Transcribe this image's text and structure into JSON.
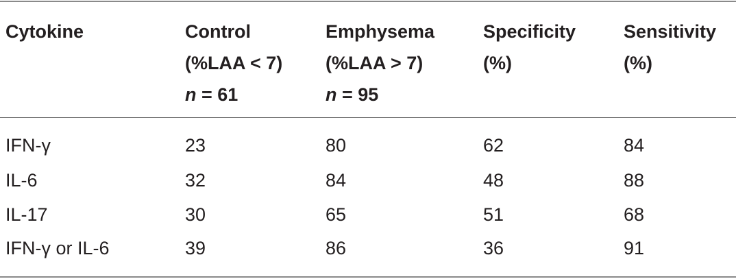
{
  "table": {
    "headers": [
      {
        "lines": [
          "Cytokine"
        ]
      },
      {
        "lines": [
          "Control",
          "(%LAA < 7)"
        ],
        "n_var": "n",
        "n_value": " = 61"
      },
      {
        "lines": [
          "Emphysema",
          "(%LAA > 7)"
        ],
        "n_var": "n",
        "n_value": " = 95"
      },
      {
        "lines": [
          "Specificity",
          "(%)"
        ]
      },
      {
        "lines": [
          "Sensitivity",
          "(%)"
        ]
      }
    ],
    "rows": [
      [
        "IFN-γ",
        "23",
        "80",
        "62",
        "84"
      ],
      [
        "IL-6",
        "32",
        "84",
        "48",
        "88"
      ],
      [
        "IL-17",
        "30",
        "65",
        "51",
        "68"
      ],
      [
        "IFN-γ or IL-6",
        "39",
        "86",
        "36",
        "91"
      ]
    ]
  }
}
